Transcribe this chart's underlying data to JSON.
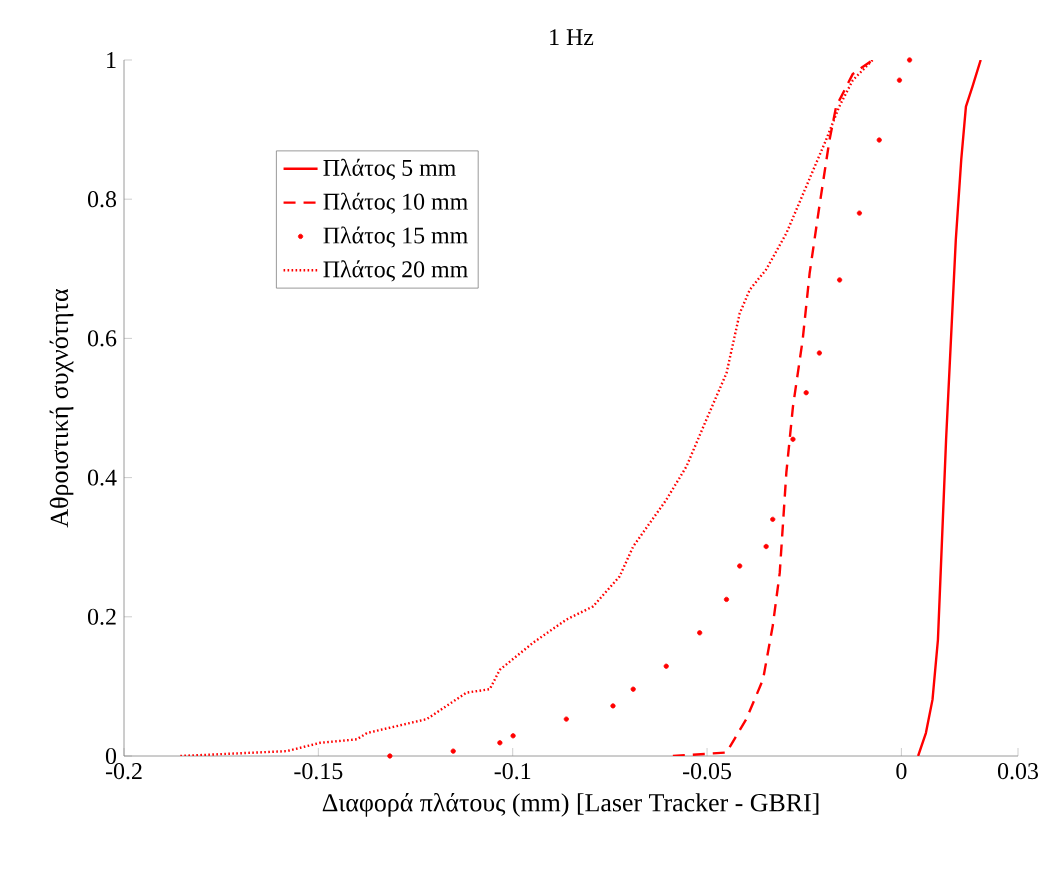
{
  "chart_data": {
    "type": "line",
    "title": "1 Hz",
    "xlabel": "Διαφορά πλάτους (mm) [Laser Tracker - GBRI]",
    "ylabel": "Αθροιστική συχνότητα",
    "xlim": [
      -0.2,
      0.03
    ],
    "xticks": [
      -0.2,
      -0.15,
      -0.1,
      -0.05,
      0,
      0.03
    ],
    "ylim": [
      0,
      1
    ],
    "yticks": [
      0,
      0.2,
      0.4,
      0.6,
      0.8,
      1
    ],
    "grid": false,
    "legend": "top left",
    "series": [
      {
        "name": "Πλάτος 5 mm",
        "color": "#ff0000",
        "line_style": "solid",
        "x": [
          0.0043,
          0.0063,
          0.008,
          0.0094,
          0.0115,
          0.014,
          0.0154,
          0.0166,
          0.0183,
          0.0204
        ],
        "values": [
          0,
          0.033,
          0.081,
          0.167,
          0.455,
          0.742,
          0.857,
          0.933,
          0.962,
          1
        ]
      },
      {
        "name": "Πλάτος 10 mm",
        "color": "#ff0000",
        "line_style": "dashed",
        "x": [
          -0.0588,
          -0.045,
          -0.0399,
          -0.0356,
          -0.0331,
          -0.0313,
          -0.0296,
          -0.0279,
          -0.0254,
          -0.0236,
          -0.0211,
          -0.0185,
          -0.0168,
          -0.0125,
          -0.0074
        ],
        "values": [
          0,
          0.005,
          0.053,
          0.11,
          0.187,
          0.263,
          0.407,
          0.502,
          0.598,
          0.694,
          0.79,
          0.885,
          0.933,
          0.98,
          1
        ]
      },
      {
        "name": "Πλάτος 15 mm",
        "color": "#ff0000",
        "type": "scatter",
        "x": [
          -0.1316,
          -0.1153,
          -0.1033,
          -0.0999,
          -0.0862,
          -0.0742,
          -0.069,
          -0.0605,
          -0.0519,
          -0.045,
          -0.0416,
          -0.0348,
          -0.0331,
          -0.0279,
          -0.0245,
          -0.0211,
          -0.0159,
          -0.0108,
          -0.0057,
          -0.0005,
          0.0021
        ],
        "values": [
          0,
          0.007,
          0.019,
          0.029,
          0.053,
          0.072,
          0.096,
          0.129,
          0.177,
          0.225,
          0.273,
          0.301,
          0.34,
          0.455,
          0.522,
          0.579,
          0.684,
          0.78,
          0.885,
          0.971,
          1
        ]
      },
      {
        "name": "Πλάτος 20 mm",
        "color": "#ff0000",
        "line_style": "dotted",
        "x": [
          -0.1855,
          -0.1581,
          -0.1495,
          -0.1401,
          -0.1375,
          -0.1221,
          -0.117,
          -0.1119,
          -0.1059,
          -0.1033,
          -0.0947,
          -0.0862,
          -0.0793,
          -0.0725,
          -0.069,
          -0.0605,
          -0.0553,
          -0.0502,
          -0.045,
          -0.0416,
          -0.039,
          -0.0348,
          -0.0296,
          -0.0245,
          -0.0194,
          -0.016,
          -0.0125,
          -0.0074
        ],
        "values": [
          0,
          0.007,
          0.019,
          0.024,
          0.033,
          0.053,
          0.072,
          0.091,
          0.096,
          0.124,
          0.163,
          0.196,
          0.215,
          0.258,
          0.301,
          0.368,
          0.416,
          0.483,
          0.55,
          0.636,
          0.67,
          0.699,
          0.751,
          0.818,
          0.885,
          0.933,
          0.971,
          1
        ]
      }
    ]
  }
}
